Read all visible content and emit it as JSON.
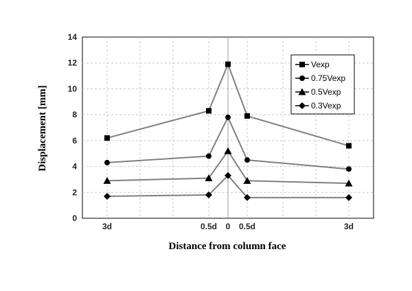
{
  "chart_data": {
    "type": "line",
    "title": "",
    "xlabel": "Distance from column face",
    "ylabel": "Displacement [mm]",
    "ylim": [
      0,
      14
    ],
    "yticks": [
      0,
      2,
      4,
      6,
      8,
      10,
      12,
      14
    ],
    "categories": [
      "3d",
      "0.5d",
      "0",
      "0.5d",
      "3d"
    ],
    "grid": "dashed",
    "legend_position": "top-right",
    "colors": {
      "line": "#7f7f7f",
      "marker": "#000000",
      "axis": "#000000",
      "grid": "#c8c8c8"
    },
    "series": [
      {
        "name": "Vexp",
        "marker": "square",
        "values": [
          6.2,
          8.3,
          11.9,
          7.9,
          5.6
        ]
      },
      {
        "name": "0.75Vexp",
        "marker": "circle",
        "values": [
          4.3,
          4.8,
          7.8,
          4.5,
          3.8
        ]
      },
      {
        "name": "0.5Vexp",
        "marker": "triangle",
        "values": [
          2.9,
          3.1,
          5.2,
          2.9,
          2.7
        ]
      },
      {
        "name": "0.3Vexp",
        "marker": "diamond",
        "values": [
          1.7,
          1.8,
          3.3,
          1.6,
          1.6
        ]
      }
    ]
  }
}
